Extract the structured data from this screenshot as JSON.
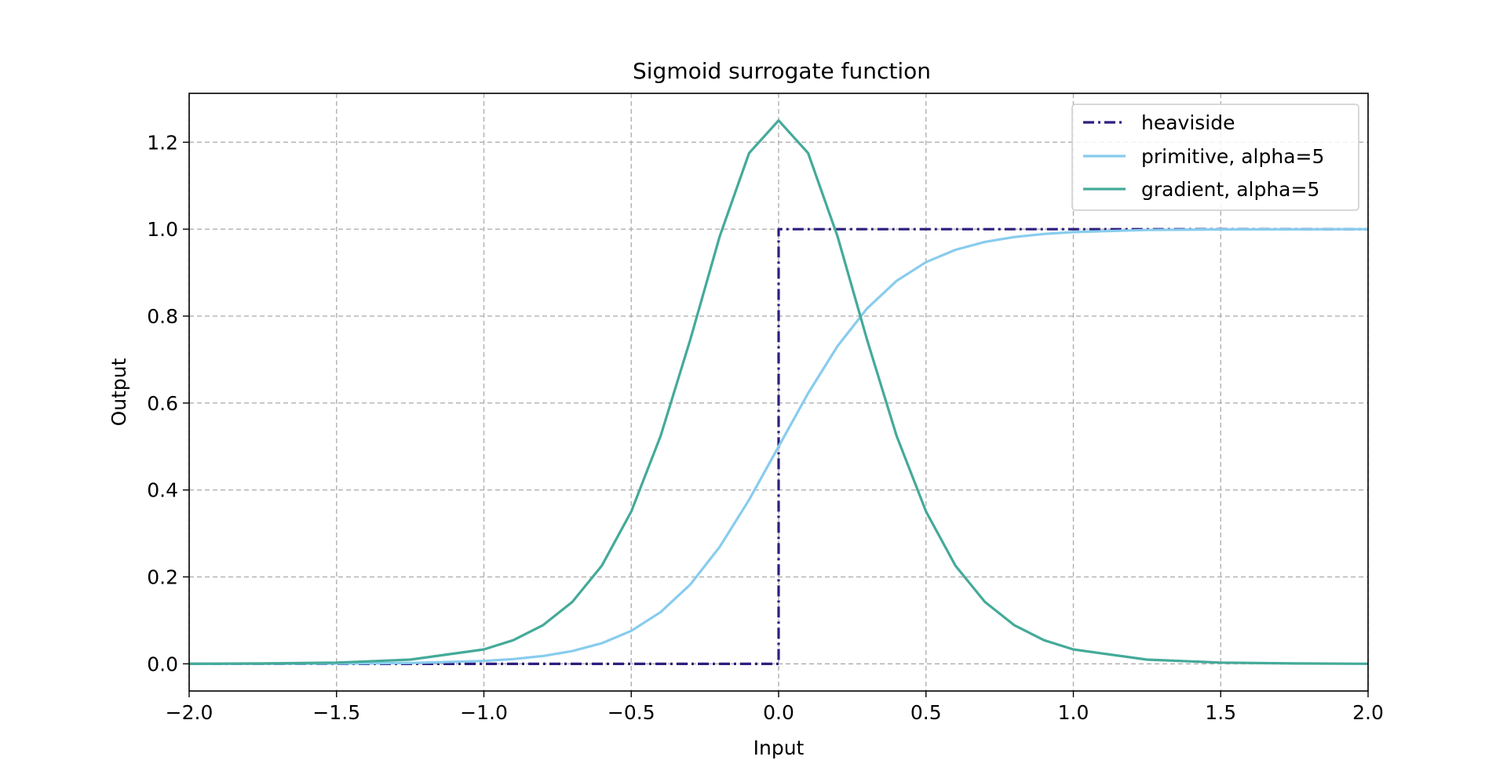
{
  "chart_data": {
    "type": "line",
    "title": "Sigmoid surrogate function",
    "xlabel": "Input",
    "ylabel": "Output",
    "xlim": [
      -2.0,
      2.0
    ],
    "ylim": [
      -0.0625,
      1.3125
    ],
    "grid": true,
    "legend_position": "top-right",
    "x_ticks": [
      -2.0,
      -1.5,
      -1.0,
      -0.5,
      0.0,
      0.5,
      1.0,
      1.5,
      2.0
    ],
    "x_tick_labels": [
      "−2.0",
      "−1.5",
      "−1.0",
      "−0.5",
      "0.0",
      "0.5",
      "1.0",
      "1.5",
      "2.0"
    ],
    "y_ticks": [
      0.0,
      0.2,
      0.4,
      0.6,
      0.8,
      1.0,
      1.2
    ],
    "y_tick_labels": [
      "0.0",
      "0.2",
      "0.4",
      "0.6",
      "0.8",
      "1.0",
      "1.2"
    ],
    "series": [
      {
        "name": "heaviside",
        "color": "#2e1e7e",
        "line_style": "dashdot",
        "x": [
          -2.0,
          0.0,
          0.0,
          2.0
        ],
        "y": [
          0.0,
          0.0,
          1.0,
          1.0
        ]
      },
      {
        "name": "primitive, alpha=5",
        "color": "#88ccee",
        "line_style": "solid",
        "x": [
          -2.0,
          -1.75,
          -1.5,
          -1.25,
          -1.0,
          -0.9,
          -0.8,
          -0.7,
          -0.6,
          -0.5,
          -0.4,
          -0.3,
          -0.2,
          -0.1,
          0.0,
          0.1,
          0.2,
          0.3,
          0.4,
          0.5,
          0.6,
          0.7,
          0.8,
          0.9,
          1.0,
          1.25,
          1.5,
          1.75,
          2.0
        ],
        "y": [
          0.0001,
          0.0002,
          0.0006,
          0.0019,
          0.0067,
          0.011,
          0.018,
          0.0293,
          0.0474,
          0.0759,
          0.1192,
          0.1824,
          0.2689,
          0.3775,
          0.5,
          0.6225,
          0.7311,
          0.8176,
          0.8808,
          0.9241,
          0.9526,
          0.9707,
          0.982,
          0.989,
          0.9933,
          0.9981,
          0.9994,
          0.9998,
          0.9999
        ]
      },
      {
        "name": "gradient, alpha=5",
        "color": "#44aa99",
        "line_style": "solid",
        "x": [
          -2.0,
          -1.75,
          -1.5,
          -1.25,
          -1.0,
          -0.9,
          -0.8,
          -0.7,
          -0.6,
          -0.5,
          -0.4,
          -0.3,
          -0.2,
          -0.1,
          0.0,
          0.1,
          0.2,
          0.3,
          0.4,
          0.5,
          0.6,
          0.7,
          0.8,
          0.9,
          1.0,
          1.25,
          1.5,
          1.75,
          2.0
        ],
        "y": [
          0.0002,
          0.0008,
          0.0028,
          0.0096,
          0.0332,
          0.0544,
          0.0887,
          0.1425,
          0.2257,
          0.3505,
          0.525,
          0.7455,
          0.9831,
          1.175,
          1.25,
          1.175,
          0.9831,
          0.7455,
          0.525,
          0.3505,
          0.2257,
          0.1425,
          0.0887,
          0.0544,
          0.0332,
          0.0096,
          0.0028,
          0.0008,
          0.0002
        ]
      }
    ]
  }
}
